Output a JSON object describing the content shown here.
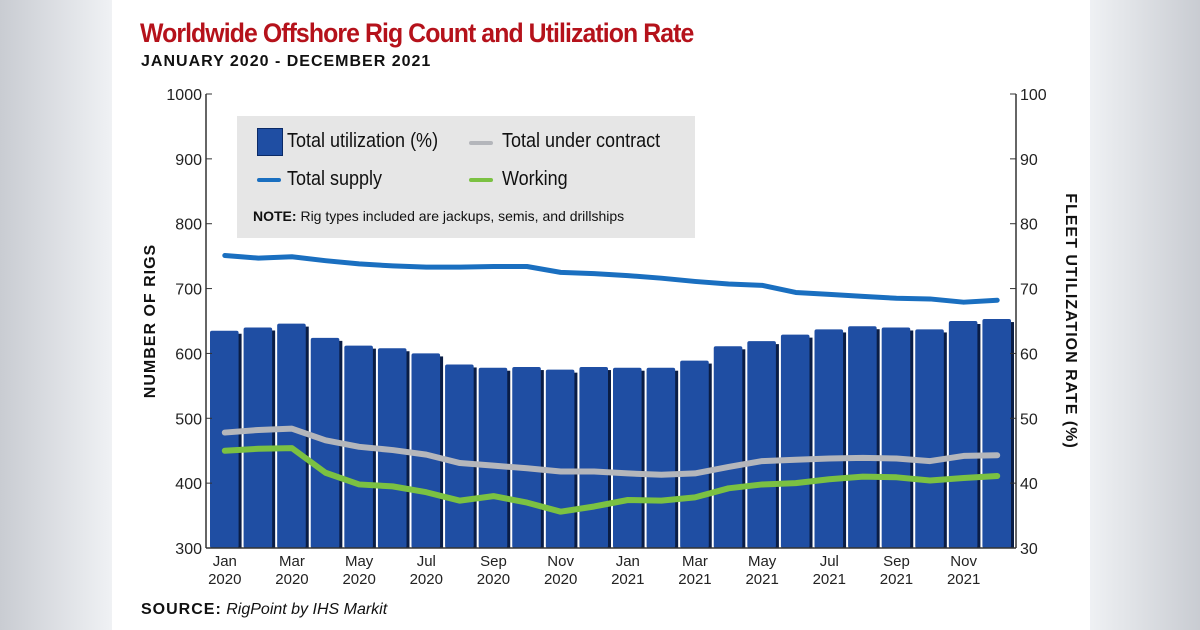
{
  "chart_data": {
    "type": "bar",
    "title": "Worldwide Offshore Rig Count and Utilization Rate",
    "subtitle": "JANUARY 2020 - DECEMBER 2021",
    "ylabel_left": "NUMBER OF RIGS",
    "ylabel_right": "FLEET UTILIZATION RATE (%)",
    "ylim_left": [
      300,
      1000
    ],
    "ylim_right": [
      30,
      100
    ],
    "yticks_left": [
      "300",
      "400",
      "500",
      "600",
      "700",
      "800",
      "900",
      "1000"
    ],
    "yticks_right": [
      "30",
      "40",
      "50",
      "60",
      "70",
      "80",
      "90",
      "100"
    ],
    "xtick_labels": [
      [
        "Jan",
        "2020"
      ],
      [
        "Mar",
        "2020"
      ],
      [
        "May",
        "2020"
      ],
      [
        "Jul",
        "2020"
      ],
      [
        "Sep",
        "2020"
      ],
      [
        "Nov",
        "2020"
      ],
      [
        "Jan",
        "2021"
      ],
      [
        "Mar",
        "2021"
      ],
      [
        "May",
        "2021"
      ],
      [
        "Jul",
        "2021"
      ],
      [
        "Sep",
        "2021"
      ],
      [
        "Nov",
        "2021"
      ]
    ],
    "categories": [
      "Jan 2020",
      "Feb 2020",
      "Mar 2020",
      "Apr 2020",
      "May 2020",
      "Jun 2020",
      "Jul 2020",
      "Aug 2020",
      "Sep 2020",
      "Oct 2020",
      "Nov 2020",
      "Dec 2020",
      "Jan 2021",
      "Feb 2021",
      "Mar 2021",
      "Apr 2021",
      "May 2021",
      "Jun 2021",
      "Jul 2021",
      "Aug 2021",
      "Sep 2021",
      "Oct 2021",
      "Nov 2021",
      "Dec 2021"
    ],
    "series": [
      {
        "name": "Total utilization (%)",
        "type": "bar",
        "axis": "right",
        "color": "#1f4ea3",
        "values": [
          63.5,
          64.0,
          64.6,
          62.4,
          61.2,
          60.8,
          60.0,
          58.3,
          57.8,
          57.9,
          57.5,
          57.9,
          57.8,
          57.8,
          58.9,
          61.1,
          61.9,
          62.9,
          63.7,
          64.2,
          64.0,
          63.7,
          65.0,
          65.3
        ]
      },
      {
        "name": "Total supply",
        "type": "line",
        "axis": "left",
        "color": "#1a6fc0",
        "values": [
          751,
          747,
          749,
          743,
          738,
          735,
          733,
          733,
          734,
          734,
          725,
          723,
          720,
          716,
          711,
          707,
          705,
          694,
          691,
          688,
          685,
          684,
          679,
          682
        ]
      },
      {
        "name": "Total under contract",
        "type": "line",
        "axis": "left",
        "color": "#b4b6bb",
        "values": [
          478,
          482,
          484,
          466,
          456,
          451,
          444,
          431,
          427,
          423,
          418,
          418,
          415,
          413,
          415,
          425,
          434,
          436,
          438,
          439,
          438,
          434,
          442,
          443
        ]
      },
      {
        "name": "Working",
        "type": "line",
        "axis": "left",
        "color": "#7bc142",
        "values": [
          450,
          453,
          454,
          416,
          398,
          395,
          386,
          373,
          380,
          370,
          356,
          364,
          374,
          373,
          378,
          392,
          398,
          400,
          406,
          410,
          409,
          404,
          408,
          411
        ]
      }
    ],
    "legend": {
      "placement": "top-left",
      "note_bold": "NOTE:",
      "note_text": " Rig types included are jackups, semis, and drillships"
    },
    "source_bold": "SOURCE:",
    "source_text": "RigPoint by IHS Markit",
    "grid": false
  }
}
